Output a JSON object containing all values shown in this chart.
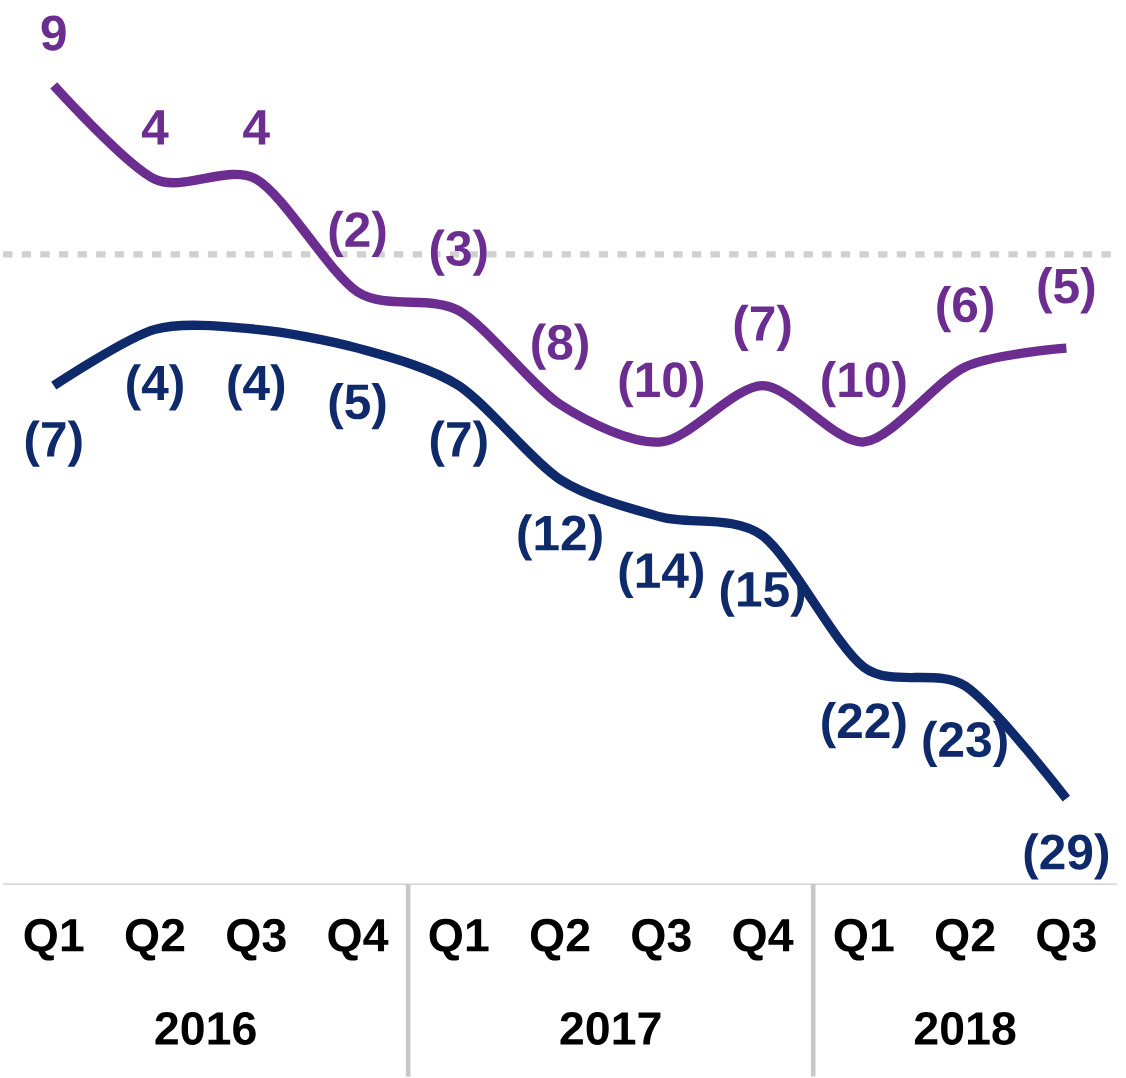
{
  "chart_data": {
    "type": "line",
    "categories": [
      "Q1",
      "Q2",
      "Q3",
      "Q4",
      "Q1",
      "Q2",
      "Q3",
      "Q4",
      "Q1",
      "Q2",
      "Q3"
    ],
    "series": [
      {
        "color": "#6b2d8f",
        "values": [
          9,
          4,
          4,
          -2,
          -3,
          -8,
          -10,
          -7,
          -10,
          -6,
          -5
        ],
        "value_labels": [
          "9",
          "4",
          "4",
          "(2)",
          "(3)",
          "(8)",
          "(10)",
          "(7)",
          "(10)",
          "(6)",
          "(5)"
        ]
      },
      {
        "color": "#0f2a6b",
        "values": [
          -7,
          -4,
          -4,
          -5,
          -7,
          -12,
          -14,
          -15,
          -22,
          -23,
          -29
        ],
        "value_labels": [
          "(7)",
          "(4)",
          "(4)",
          "(5)",
          "(7)",
          "(12)",
          "(14)",
          "(15)",
          "(22)",
          "(23)",
          "(29)"
        ]
      }
    ],
    "ref_lines": [
      {
        "axis": "y",
        "value": 0,
        "color": "#d0d0d0",
        "line_style": "dashed"
      }
    ],
    "annotations": [
      "2016",
      "2017",
      "2018"
    ],
    "marker": "none",
    "line_style": "solid",
    "grid": false
  }
}
